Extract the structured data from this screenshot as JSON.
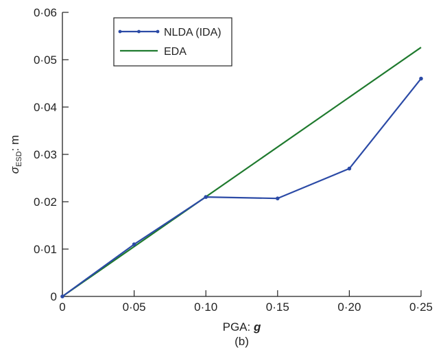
{
  "chart_data": {
    "type": "line",
    "xlabel": {
      "prefix": "PGA: ",
      "var": "g"
    },
    "ylabel": {
      "sym": "σ",
      "sub": "ESD",
      "suffix": ": m"
    },
    "caption": "(b)",
    "xlim": [
      0,
      0.25
    ],
    "ylim": [
      0,
      0.06
    ],
    "xticks": [
      {
        "v": 0,
        "label": "0"
      },
      {
        "v": 0.05,
        "label": "0·05"
      },
      {
        "v": 0.1,
        "label": "0·10"
      },
      {
        "v": 0.15,
        "label": "0·15"
      },
      {
        "v": 0.2,
        "label": "0·20"
      },
      {
        "v": 0.25,
        "label": "0·25"
      }
    ],
    "yticks": [
      {
        "v": 0,
        "label": "0"
      },
      {
        "v": 0.01,
        "label": "0·01"
      },
      {
        "v": 0.02,
        "label": "0·02"
      },
      {
        "v": 0.03,
        "label": "0·03"
      },
      {
        "v": 0.04,
        "label": "0·04"
      },
      {
        "v": 0.05,
        "label": "0·05"
      },
      {
        "v": 0.06,
        "label": "0·06"
      }
    ],
    "grid": false,
    "legend_position": "top-left",
    "series": [
      {
        "name": "NLDA (IDA)",
        "color": "#2b4aa6",
        "markers": true,
        "x": [
          0,
          0.05,
          0.1,
          0.15,
          0.2,
          0.25
        ],
        "y": [
          0,
          0.011,
          0.021,
          0.0207,
          0.027,
          0.046
        ]
      },
      {
        "name": "EDA",
        "color": "#1f7a2e",
        "markers": false,
        "x": [
          0,
          0.25
        ],
        "y": [
          0,
          0.0526
        ]
      }
    ]
  }
}
